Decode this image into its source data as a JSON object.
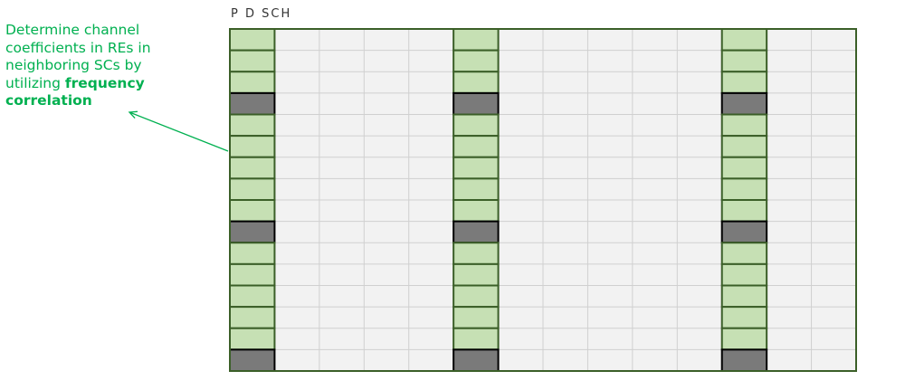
{
  "title": "P D SCH",
  "annotation": {
    "text": "Determine channel coefficients in REs in neighboring SCs by utilizing",
    "highlight": "frequency correlation"
  },
  "grid": {
    "rows": 16,
    "columns": 14,
    "pilot_columns": [
      0,
      5,
      11
    ],
    "reference_symbol_rows": [
      3,
      9,
      15
    ]
  },
  "colors": {
    "background": "#f2f2f2",
    "gridline": "#d0d0d0",
    "border": "#3b5f28",
    "pilot_fill": "#c6e0b4",
    "reference_fill": "#7a7a7a",
    "reference_border": "#000000",
    "annotation": "#00b050",
    "arrow": "#00b050"
  }
}
